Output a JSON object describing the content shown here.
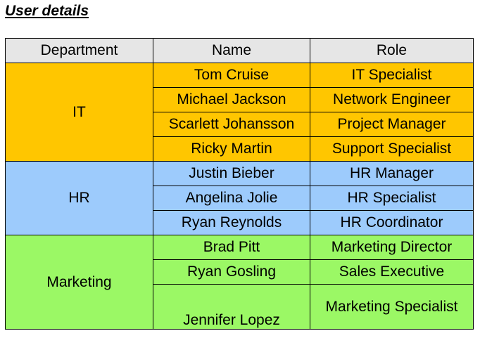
{
  "title": "User details",
  "headers": {
    "department": "Department",
    "name": "Name",
    "role": "Role"
  },
  "groups": [
    {
      "department": "IT",
      "color": "#ffc600",
      "rows": [
        {
          "name": "Tom Cruise",
          "role": "IT Specialist"
        },
        {
          "name": "Michael Jackson",
          "role": "Network Engineer"
        },
        {
          "name": "Scarlett Johansson",
          "role": "Project Manager"
        },
        {
          "name": "Ricky Martin",
          "role": "Support Specialist"
        }
      ]
    },
    {
      "department": "HR",
      "color": "#9dcbfc",
      "rows": [
        {
          "name": "Justin Bieber",
          "role": "HR Manager"
        },
        {
          "name": "Angelina Jolie",
          "role": "HR Specialist"
        },
        {
          "name": "Ryan Reynolds",
          "role": "HR Coordinator"
        }
      ]
    },
    {
      "department": "Marketing",
      "color": "#9bf865",
      "rows": [
        {
          "name": "Brad Pitt",
          "role": "Marketing Director"
        },
        {
          "name": "Ryan Gosling",
          "role": "Sales Executive"
        },
        {
          "name": "Jennifer Lopez",
          "role": "Marketing Specialist"
        }
      ]
    }
  ]
}
